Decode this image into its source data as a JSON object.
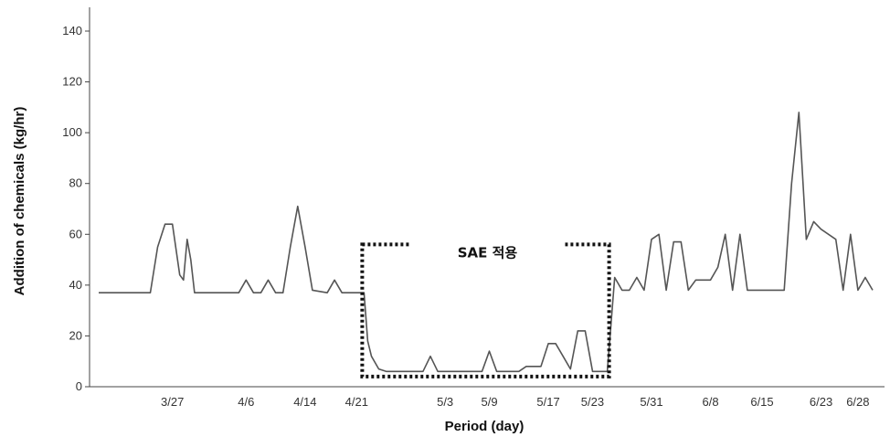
{
  "chart_data": {
    "type": "line",
    "title": "",
    "xlabel": "Period (day)",
    "ylabel": "Addition of chemicals (kg/hr)",
    "ylim": [
      0,
      145
    ],
    "yticks": [
      0,
      20,
      40,
      60,
      80,
      100,
      120,
      140
    ],
    "xlim": [
      0,
      143
    ],
    "xtick_labels": [
      {
        "x": 10,
        "label": "3/27"
      },
      {
        "x": 20,
        "label": "4/6"
      },
      {
        "x": 28,
        "label": "4/14"
      },
      {
        "x": 35,
        "label": "4/21"
      },
      {
        "x": 47,
        "label": "5/3"
      },
      {
        "x": 53,
        "label": "5/9"
      },
      {
        "x": 61,
        "label": "5/17"
      },
      {
        "x": 67,
        "label": "5/23"
      },
      {
        "x": 75,
        "label": "5/31"
      },
      {
        "x": 83,
        "label": "6/8"
      },
      {
        "x": 90,
        "label": "6/15"
      },
      {
        "x": 98,
        "label": "6/23"
      },
      {
        "x": 103,
        "label": "6/28"
      }
    ],
    "grid": false,
    "series": [
      {
        "color": "#555555",
        "points": [
          [
            0,
            37
          ],
          [
            7,
            37
          ],
          [
            8,
            55
          ],
          [
            9,
            64
          ],
          [
            10,
            64
          ],
          [
            11,
            44
          ],
          [
            11.5,
            42
          ],
          [
            12,
            58
          ],
          [
            12.5,
            50
          ],
          [
            13,
            37
          ],
          [
            19,
            37
          ],
          [
            20,
            42
          ],
          [
            21,
            37
          ],
          [
            22,
            37
          ],
          [
            23,
            42
          ],
          [
            24,
            37
          ],
          [
            25,
            37
          ],
          [
            26,
            55
          ],
          [
            27,
            71
          ],
          [
            28,
            55
          ],
          [
            29,
            38
          ],
          [
            31,
            37
          ],
          [
            32,
            42
          ],
          [
            33,
            37
          ],
          [
            35,
            37
          ],
          [
            36,
            37
          ],
          [
            36.5,
            18
          ],
          [
            37,
            12
          ],
          [
            38,
            7
          ],
          [
            39,
            6
          ],
          [
            44,
            6
          ],
          [
            45,
            12
          ],
          [
            46,
            6
          ],
          [
            52,
            6
          ],
          [
            53,
            14
          ],
          [
            54,
            6
          ],
          [
            57,
            6
          ],
          [
            58,
            8
          ],
          [
            60,
            8
          ],
          [
            61,
            17
          ],
          [
            62,
            17
          ],
          [
            63,
            12
          ],
          [
            64,
            7
          ],
          [
            65,
            22
          ],
          [
            66,
            22
          ],
          [
            67,
            6
          ],
          [
            69,
            6
          ],
          [
            70,
            43
          ],
          [
            71,
            38
          ],
          [
            72,
            38
          ],
          [
            73,
            43
          ],
          [
            74,
            38
          ],
          [
            75,
            58
          ],
          [
            76,
            60
          ],
          [
            77,
            38
          ],
          [
            78,
            57
          ],
          [
            79,
            57
          ],
          [
            80,
            38
          ],
          [
            81,
            42
          ],
          [
            83,
            42
          ],
          [
            84,
            47
          ],
          [
            85,
            60
          ],
          [
            86,
            38
          ],
          [
            87,
            60
          ],
          [
            88,
            38
          ],
          [
            93,
            38
          ],
          [
            94,
            80
          ],
          [
            95,
            108
          ],
          [
            96,
            58
          ],
          [
            97,
            65
          ],
          [
            98,
            62
          ],
          [
            100,
            58
          ],
          [
            101,
            38
          ],
          [
            102,
            60
          ],
          [
            103,
            38
          ],
          [
            104,
            43
          ],
          [
            105,
            38
          ]
        ]
      }
    ],
    "annotations": [
      {
        "text": "SAE 적용",
        "type": "dotted-box",
        "x_range": [
          36,
          69
        ],
        "y_range": [
          4,
          56
        ]
      }
    ]
  }
}
